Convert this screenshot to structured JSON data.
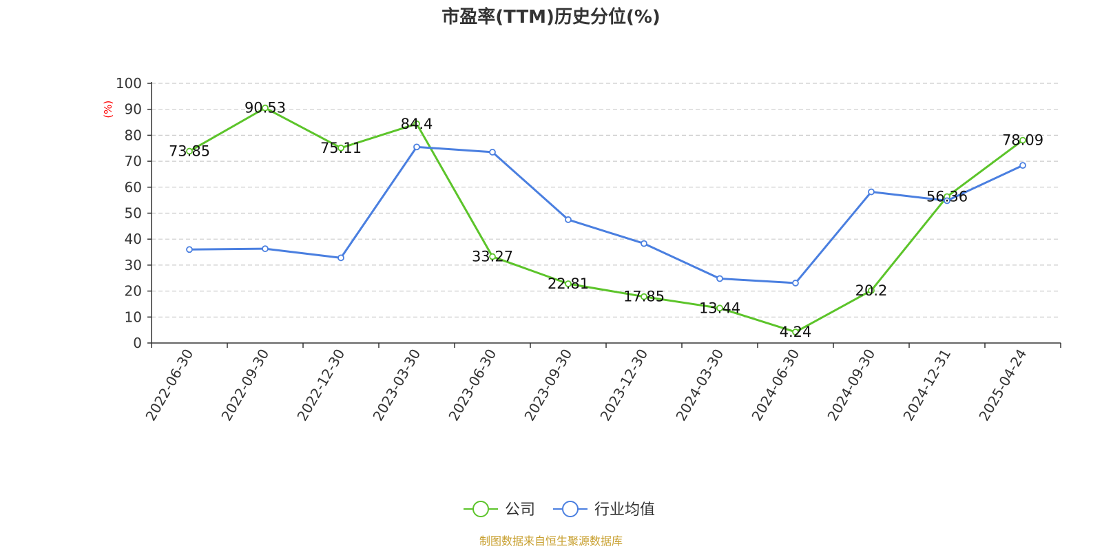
{
  "chart_data": {
    "type": "line",
    "title": "市盈率(TTM)历史分位(%)",
    "ylabel": "(%)",
    "ylim": [
      0,
      100
    ],
    "yticks": [
      0,
      10,
      20,
      30,
      40,
      50,
      60,
      70,
      80,
      90,
      100
    ],
    "grid": true,
    "legend_position": "bottom-center",
    "categories": [
      "2022-06-30",
      "2022-09-30",
      "2022-12-30",
      "2023-03-30",
      "2023-06-30",
      "2023-09-30",
      "2023-12-30",
      "2024-03-30",
      "2024-06-30",
      "2024-09-30",
      "2024-12-31",
      "2025-04-24"
    ],
    "series": [
      {
        "name": "公司",
        "color": "#5cc42a",
        "values": [
          73.85,
          90.53,
          75.11,
          84.4,
          33.27,
          22.81,
          17.85,
          13.44,
          4.24,
          20.2,
          56.36,
          78.09
        ],
        "labels": [
          "73.85",
          "90.53",
          "75.11",
          "84.4",
          "33.27",
          "22.81",
          "17.85",
          "13.44",
          "4.24",
          "20.2",
          "56.36",
          "78.09"
        ]
      },
      {
        "name": "行业均值",
        "color": "#4a7fe0",
        "values": [
          36.0,
          36.3,
          32.8,
          75.5,
          73.5,
          47.5,
          38.3,
          24.8,
          23.1,
          58.2,
          54.8,
          68.4
        ]
      }
    ]
  },
  "source": "制图数据来自恒生聚源数据库"
}
